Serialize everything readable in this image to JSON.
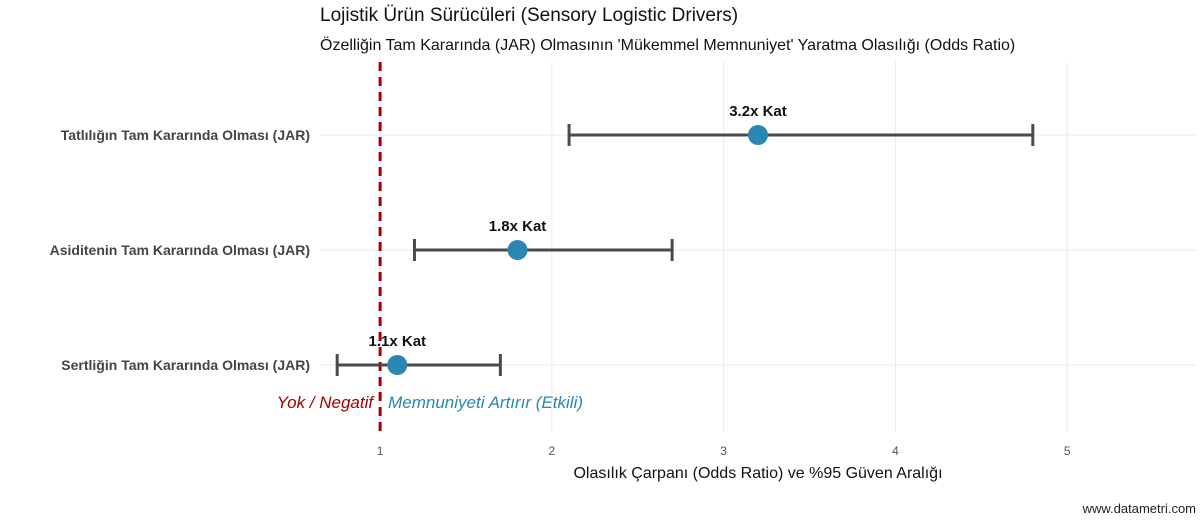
{
  "chart_data": {
    "type": "scatter",
    "title": "Lojistik Ürün Sürücüleri (Sensory Logistic Drivers)",
    "subtitle": "Özelliğin Tam Kararında (JAR) Olmasının 'Mükemmel Memnuniyet' Yaratma Olasılığı (Odds Ratio)",
    "xlabel": "Olasılık Çarpanı (Odds Ratio) ve %95 Güven Aralığı",
    "ylabel": "",
    "xlim": [
      0.65,
      5.75
    ],
    "xticks": [
      1,
      2,
      3,
      4,
      5
    ],
    "grid": true,
    "reference_line": {
      "x": 1,
      "color": "#a50000",
      "style": "dashed"
    },
    "categories": [
      "Tatlılığın Tam Kararında Olması (JAR)",
      "Asiditenin Tam Kararında Olması (JAR)",
      "Sertliğin Tam Kararında Olması (JAR)"
    ],
    "points": [
      {
        "category": "Tatlılığın Tam Kararında Olması (JAR)",
        "odds_ratio": 3.2,
        "ci_low": 2.1,
        "ci_high": 4.8,
        "label": "3.2x Kat"
      },
      {
        "category": "Asiditenin Tam Kararında Olması (JAR)",
        "odds_ratio": 1.8,
        "ci_low": 1.2,
        "ci_high": 2.7,
        "label": "1.8x Kat"
      },
      {
        "category": "Sertliğin Tam Kararında Olması (JAR)",
        "odds_ratio": 1.1,
        "ci_low": 0.75,
        "ci_high": 1.7,
        "label": "1.1x Kat"
      }
    ],
    "annotations": [
      {
        "text": "Yok / Negatif",
        "color": "#a50000"
      },
      {
        "text": "Memnuniyeti Artırır (Etkili)",
        "color": "#2a86b3"
      }
    ],
    "point_color": "#2a86b3",
    "errorbar_color": "#4a4a4a"
  },
  "watermark": "www.datametri.com"
}
